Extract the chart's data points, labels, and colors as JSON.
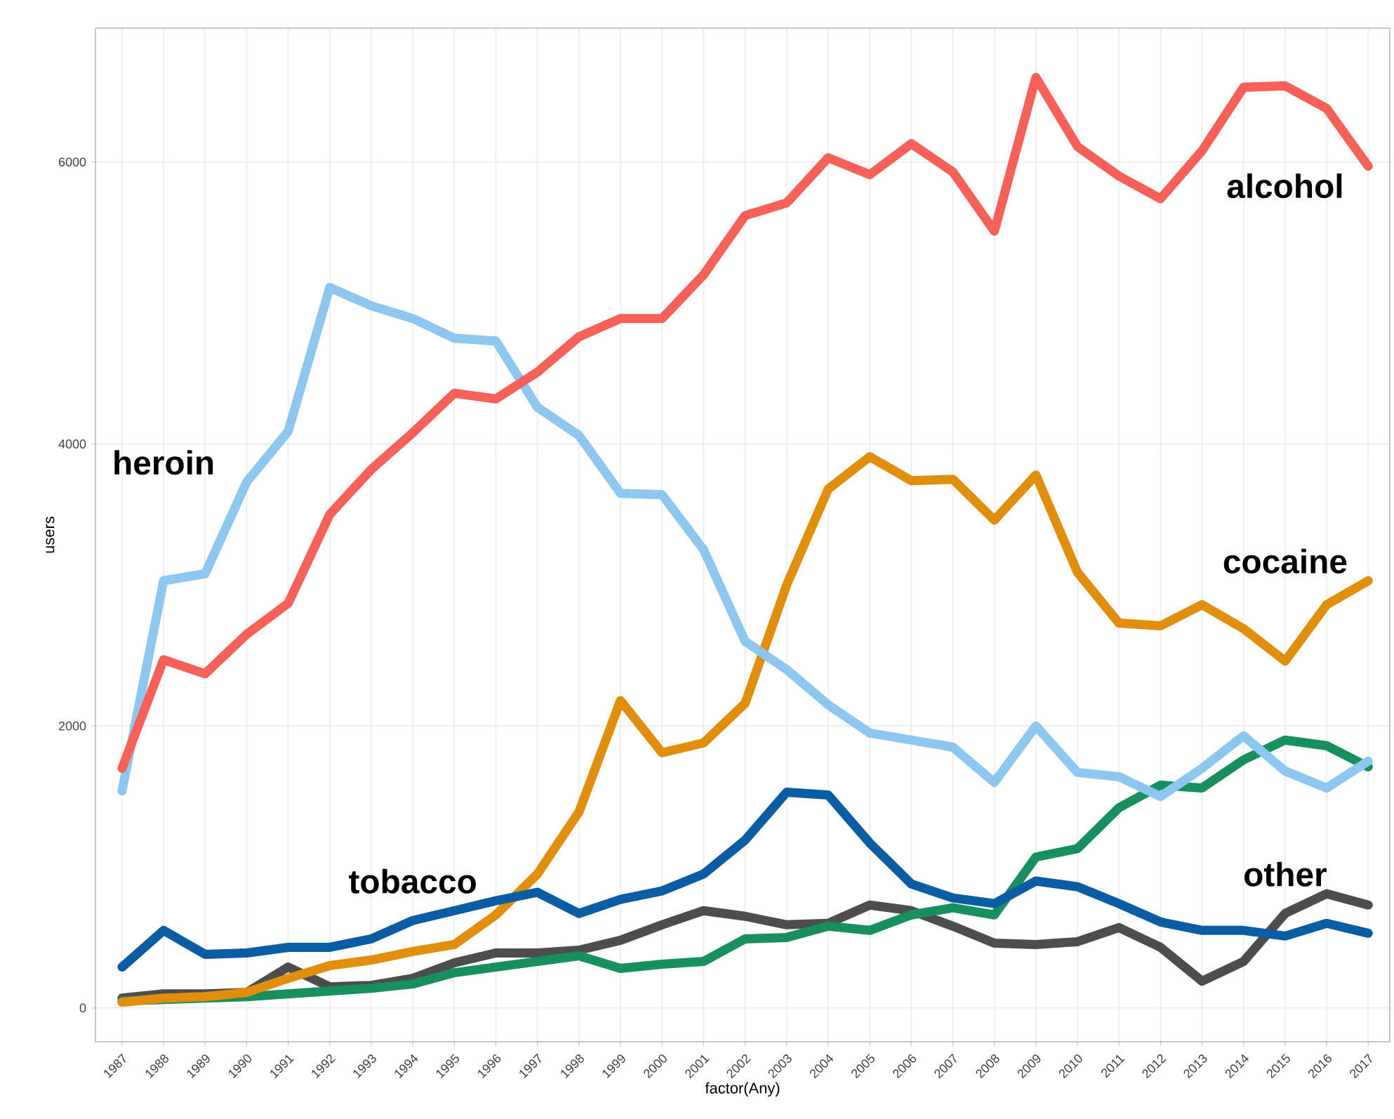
{
  "chart_data": {
    "type": "line",
    "xlabel": "factor(Any)",
    "ylabel": "users",
    "categories": [
      "1987",
      "1988",
      "1989",
      "1990",
      "1991",
      "1992",
      "1993",
      "1994",
      "1995",
      "1996",
      "1997",
      "1998",
      "1999",
      "2000",
      "2001",
      "2002",
      "2003",
      "2004",
      "2005",
      "2006",
      "2007",
      "2008",
      "2009",
      "2010",
      "2011",
      "2012",
      "2013",
      "2014",
      "2015",
      "2016",
      "2017"
    ],
    "ylim": [
      -240,
      6950
    ],
    "yticks": [
      0,
      2000,
      4000,
      6000
    ],
    "grid": true,
    "series": [
      {
        "name": "other",
        "color": "#4d4d4d",
        "values": [
          70,
          100,
          100,
          110,
          290,
          150,
          160,
          210,
          320,
          390,
          390,
          410,
          480,
          590,
          690,
          650,
          590,
          600,
          730,
          690,
          580,
          460,
          450,
          470,
          570,
          430,
          190,
          330,
          670,
          810,
          730
        ]
      },
      {
        "color": "#178f5f",
        "values": [
          50,
          60,
          70,
          80,
          100,
          120,
          140,
          170,
          250,
          290,
          330,
          370,
          280,
          310,
          330,
          490,
          500,
          580,
          550,
          660,
          710,
          660,
          1070,
          1130,
          1420,
          1580,
          1560,
          1760,
          1900,
          1860,
          1710
        ]
      },
      {
        "name": "cocaine",
        "color": "#e08e0b",
        "values": [
          40,
          70,
          80,
          110,
          210,
          300,
          340,
          400,
          450,
          660,
          950,
          1390,
          2180,
          1810,
          1880,
          2160,
          3000,
          3680,
          3910,
          3740,
          3750,
          3460,
          3780,
          3090,
          2730,
          2710,
          2860,
          2690,
          2460,
          2860,
          3030
        ]
      },
      {
        "name": "tobacco",
        "color": "#0a5ca3",
        "values": [
          290,
          550,
          380,
          390,
          430,
          430,
          490,
          620,
          690,
          760,
          820,
          670,
          770,
          830,
          950,
          1190,
          1530,
          1510,
          1170,
          880,
          780,
          740,
          900,
          860,
          740,
          610,
          550,
          550,
          510,
          600,
          530
        ]
      },
      {
        "name": "heroin",
        "color": "#8dc6ef",
        "values": [
          1540,
          3030,
          3080,
          3730,
          4090,
          5110,
          4980,
          4890,
          4750,
          4730,
          4260,
          4060,
          3650,
          3640,
          3250,
          2600,
          2400,
          2150,
          1950,
          1900,
          1850,
          1600,
          2000,
          1670,
          1640,
          1500,
          1700,
          1930,
          1680,
          1560,
          1750
        ]
      },
      {
        "name": "alcohol",
        "color": "#f8605a",
        "values": [
          1700,
          2470,
          2370,
          2650,
          2870,
          3500,
          3820,
          4080,
          4360,
          4320,
          4510,
          4760,
          4890,
          4890,
          5200,
          5620,
          5710,
          6030,
          5910,
          6130,
          5930,
          5510,
          6600,
          6110,
          5900,
          5740,
          6080,
          6530,
          6540,
          6380,
          5970
        ]
      }
    ]
  }
}
